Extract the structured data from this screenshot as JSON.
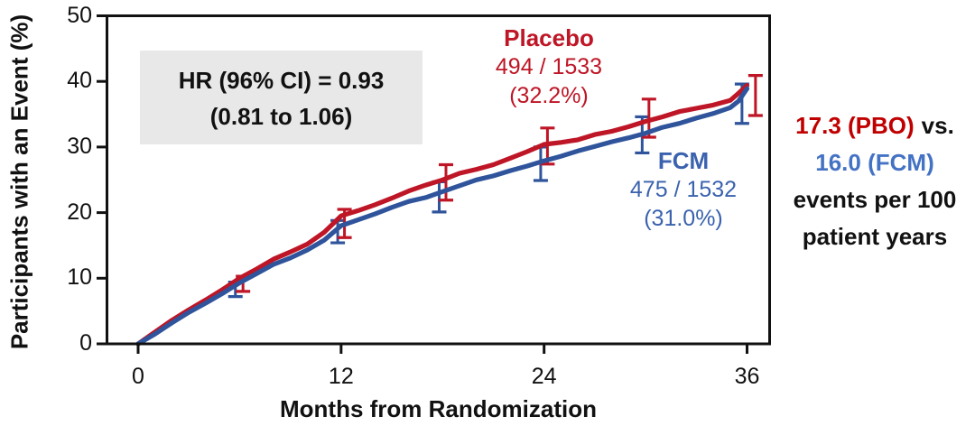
{
  "colors": {
    "placebo_red": "#be1626",
    "fcm_curve_blue": "#2f549b",
    "fcm_label_blue": "#3a62ae",
    "panel_red": "#c00000",
    "panel_blue": "#4472c4",
    "axis_black": "#111111",
    "hr_box_bg": "#e8e8e8"
  },
  "chart_data": {
    "type": "line",
    "title": "",
    "xlabel": "Months from Randomization",
    "ylabel": "Participants with an Event (%)",
    "xlim": [
      0,
      36
    ],
    "ylim": [
      0,
      50
    ],
    "xticks": [
      0,
      12,
      24,
      36
    ],
    "yticks": [
      0,
      10,
      20,
      30,
      40,
      50
    ],
    "grid": false,
    "legend_position": "labels-on-chart",
    "series": [
      {
        "name": "Placebo",
        "color": "#be1626",
        "events": 494,
        "n": 1533,
        "pct": 32.2,
        "rate_per_100py": 17.3,
        "x": [
          0,
          1,
          2,
          3,
          4,
          5,
          6,
          7,
          8,
          9,
          10,
          11,
          12,
          13,
          14,
          15,
          16,
          17,
          18,
          19,
          20,
          21,
          22,
          23,
          24,
          25,
          26,
          27,
          28,
          29,
          30,
          31,
          32,
          33,
          34,
          35,
          35.5,
          36
        ],
        "y": [
          0,
          1.8,
          3.6,
          5.2,
          6.7,
          8.3,
          10.0,
          11.4,
          12.9,
          14.0,
          15.2,
          17.0,
          19.5,
          20.3,
          21.2,
          22.2,
          23.3,
          24.2,
          25.0,
          26.0,
          26.6,
          27.3,
          28.3,
          29.3,
          30.4,
          30.7,
          31.1,
          31.9,
          32.4,
          33.1,
          33.9,
          34.6,
          35.4,
          35.9,
          36.4,
          37.1,
          38.2,
          39.4
        ]
      },
      {
        "name": "FCM",
        "color": "#2f549b",
        "events": 475,
        "n": 1532,
        "pct": 31.0,
        "rate_per_100py": 16.0,
        "x": [
          0,
          1,
          2,
          3,
          4,
          5,
          6,
          7,
          8,
          9,
          10,
          11,
          12,
          13,
          14,
          15,
          16,
          17,
          18,
          19,
          20,
          21,
          22,
          23,
          24,
          25,
          26,
          27,
          28,
          29,
          30,
          31,
          32,
          33,
          34,
          35,
          35.5,
          36
        ],
        "y": [
          0,
          1.5,
          3.2,
          4.8,
          6.2,
          7.7,
          9.3,
          10.7,
          12.1,
          13.1,
          14.3,
          15.8,
          18.0,
          18.9,
          19.8,
          20.8,
          21.7,
          22.3,
          23.2,
          24.1,
          25.0,
          25.6,
          26.4,
          27.1,
          27.9,
          28.6,
          29.4,
          30.1,
          30.8,
          31.4,
          32.1,
          33.0,
          33.6,
          34.4,
          35.1,
          36.0,
          37.0,
          38.9
        ]
      }
    ],
    "error_bars": [
      {
        "series": "FCM",
        "t": 5.75,
        "lo": 7.2,
        "hi": 9.4
      },
      {
        "series": "Placebo",
        "t": 6.2,
        "lo": 8.0,
        "hi": 10.3
      },
      {
        "series": "FCM",
        "t": 11.8,
        "lo": 15.4,
        "hi": 18.8
      },
      {
        "series": "Placebo",
        "t": 12.2,
        "lo": 16.2,
        "hi": 20.5
      },
      {
        "series": "FCM",
        "t": 17.8,
        "lo": 20.1,
        "hi": 24.7
      },
      {
        "series": "Placebo",
        "t": 18.2,
        "lo": 21.9,
        "hi": 27.3
      },
      {
        "series": "FCM",
        "t": 23.8,
        "lo": 24.9,
        "hi": 30.0
      },
      {
        "series": "Placebo",
        "t": 24.2,
        "lo": 27.4,
        "hi": 32.9
      },
      {
        "series": "FCM",
        "t": 29.8,
        "lo": 29.1,
        "hi": 34.6
      },
      {
        "series": "Placebo",
        "t": 30.2,
        "lo": 31.5,
        "hi": 37.3
      },
      {
        "series": "FCM",
        "t": 35.7,
        "lo": 33.6,
        "hi": 39.6
      },
      {
        "series": "Placebo",
        "t": 36.5,
        "lo": 34.8,
        "hi": 40.9
      }
    ]
  },
  "annotations": {
    "hr_box": {
      "line1": "HR (96% CI) = 0.93",
      "line2": "(0.81 to 1.06)"
    },
    "placebo_label": {
      "name": "Placebo",
      "counts": "494 / 1533",
      "pct": "(32.2%)"
    },
    "fcm_label": {
      "name": "FCM",
      "counts": "475 / 1532",
      "pct": "(31.0%)"
    },
    "right_panel": {
      "pbo_rate": "17.3 (PBO)",
      "vs": "vs.",
      "fcm_rate": "16.0 (FCM)",
      "line3": "events per 100",
      "line4": "patient years"
    }
  }
}
